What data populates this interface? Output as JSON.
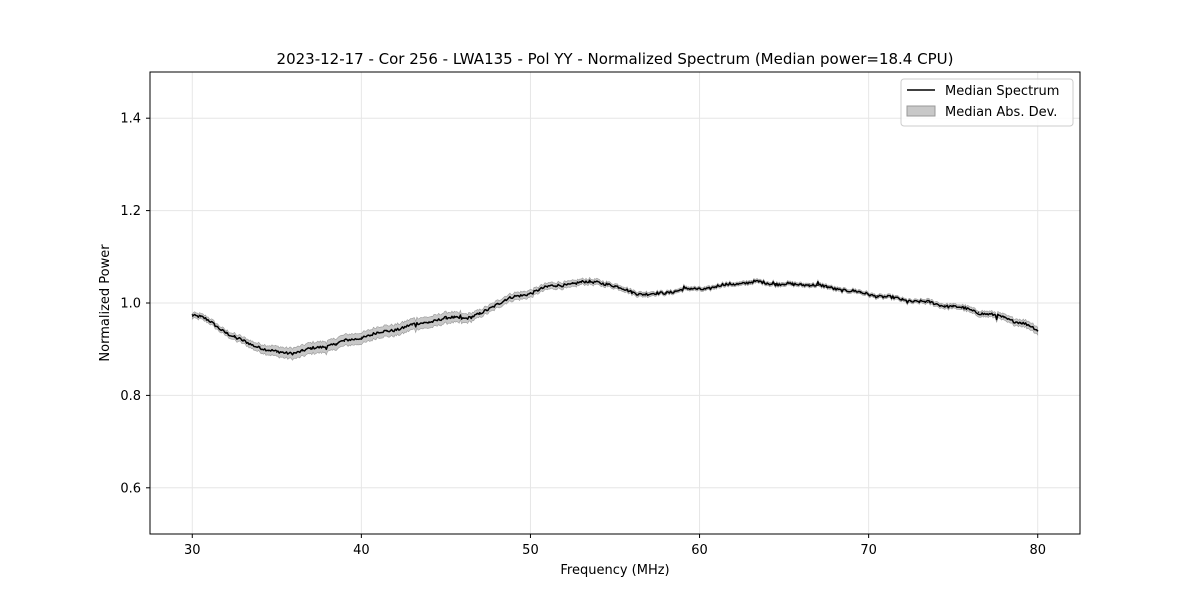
{
  "chart_data": {
    "type": "line",
    "title": "2023-12-17 - Cor 256 - LWA135 - Pol YY - Normalized Spectrum (Median power=18.4 CPU)",
    "xlabel": "Frequency (MHz)",
    "ylabel": "Normalized Power",
    "xlim": [
      27.5,
      82.5
    ],
    "ylim": [
      0.5,
      1.5
    ],
    "xticks": [
      30,
      40,
      50,
      60,
      70,
      80
    ],
    "yticks": [
      0.6,
      0.8,
      1.0,
      1.2,
      1.4
    ],
    "xtick_labels": [
      "30",
      "40",
      "50",
      "60",
      "70",
      "80"
    ],
    "ytick_labels": [
      "0.6",
      "0.8",
      "1.0",
      "1.2",
      "1.4"
    ],
    "grid": true,
    "legend_position": "top-right",
    "series": [
      {
        "name": "Median Spectrum",
        "color": "#000000",
        "x": [
          30,
          30.5,
          31,
          31.5,
          32,
          32.5,
          33,
          33.5,
          34,
          34.5,
          35,
          35.5,
          36,
          36.5,
          37,
          37.5,
          38,
          38.5,
          39,
          39.5,
          40,
          40.5,
          41,
          41.5,
          42,
          42.5,
          43,
          43.5,
          44,
          44.5,
          45,
          45.5,
          46,
          46.5,
          47,
          47.5,
          48,
          48.5,
          49,
          49.5,
          50,
          50.5,
          51,
          51.5,
          52,
          52.5,
          53,
          53.5,
          54,
          54.5,
          55,
          55.5,
          56,
          56.5,
          57,
          57.5,
          58,
          58.5,
          59,
          59.5,
          60,
          60.5,
          61,
          61.5,
          62,
          62.5,
          63,
          63.5,
          64,
          64.5,
          65,
          65.5,
          66,
          66.5,
          67,
          67.5,
          68,
          68.5,
          69,
          69.5,
          70,
          70.5,
          71,
          71.5,
          72,
          72.5,
          73,
          73.5,
          74,
          74.5,
          75,
          75.5,
          76,
          76.5,
          77,
          77.5,
          78,
          78.5,
          79,
          79.5,
          80
        ],
        "y": [
          0.975,
          0.97,
          0.96,
          0.948,
          0.937,
          0.926,
          0.917,
          0.91,
          0.905,
          0.898,
          0.893,
          0.892,
          0.893,
          0.896,
          0.9,
          0.904,
          0.908,
          0.912,
          0.917,
          0.921,
          0.926,
          0.93,
          0.935,
          0.939,
          0.943,
          0.947,
          0.952,
          0.956,
          0.96,
          0.963,
          0.966,
          0.968,
          0.968,
          0.97,
          0.975,
          0.985,
          0.998,
          1.008,
          1.012,
          1.015,
          1.022,
          1.03,
          1.034,
          1.037,
          1.04,
          1.042,
          1.044,
          1.045,
          1.046,
          1.042,
          1.035,
          1.03,
          1.025,
          1.02,
          1.018,
          1.02,
          1.023,
          1.026,
          1.028,
          1.03,
          1.031,
          1.032,
          1.035,
          1.039,
          1.042,
          1.043,
          1.044,
          1.045,
          1.044,
          1.042,
          1.041,
          1.039,
          1.04,
          1.041,
          1.038,
          1.034,
          1.031,
          1.029,
          1.026,
          1.022,
          1.019,
          1.016,
          1.013,
          1.01,
          1.007,
          1.005,
          1.003,
          1.001,
          0.998,
          0.995,
          0.992,
          0.989,
          0.985,
          0.98,
          0.976,
          0.972,
          0.968,
          0.963,
          0.958,
          0.95,
          0.94
        ]
      }
    ],
    "band": {
      "name": "Median Abs. Dev.",
      "color": "#c8c8c8",
      "stroke": "#999999",
      "half_width": [
        0.006,
        0.006,
        0.006,
        0.006,
        0.006,
        0.007,
        0.007,
        0.008,
        0.009,
        0.01,
        0.011,
        0.011,
        0.012,
        0.012,
        0.012,
        0.012,
        0.012,
        0.012,
        0.012,
        0.012,
        0.012,
        0.012,
        0.012,
        0.012,
        0.012,
        0.012,
        0.012,
        0.012,
        0.012,
        0.012,
        0.012,
        0.011,
        0.01,
        0.009,
        0.008,
        0.008,
        0.008,
        0.008,
        0.008,
        0.008,
        0.008,
        0.007,
        0.007,
        0.007,
        0.007,
        0.007,
        0.006,
        0.006,
        0.006,
        0.005,
        0.005,
        0.005,
        0.005,
        0.005,
        0.005,
        0.004,
        0.004,
        0.004,
        0.004,
        0.004,
        0.004,
        0.004,
        0.004,
        0.004,
        0.004,
        0.004,
        0.004,
        0.004,
        0.004,
        0.004,
        0.004,
        0.004,
        0.004,
        0.004,
        0.004,
        0.004,
        0.004,
        0.004,
        0.004,
        0.004,
        0.004,
        0.004,
        0.004,
        0.004,
        0.004,
        0.004,
        0.004,
        0.005,
        0.005,
        0.005,
        0.005,
        0.005,
        0.006,
        0.006,
        0.006,
        0.006,
        0.007,
        0.007,
        0.007,
        0.008,
        0.008
      ]
    }
  }
}
